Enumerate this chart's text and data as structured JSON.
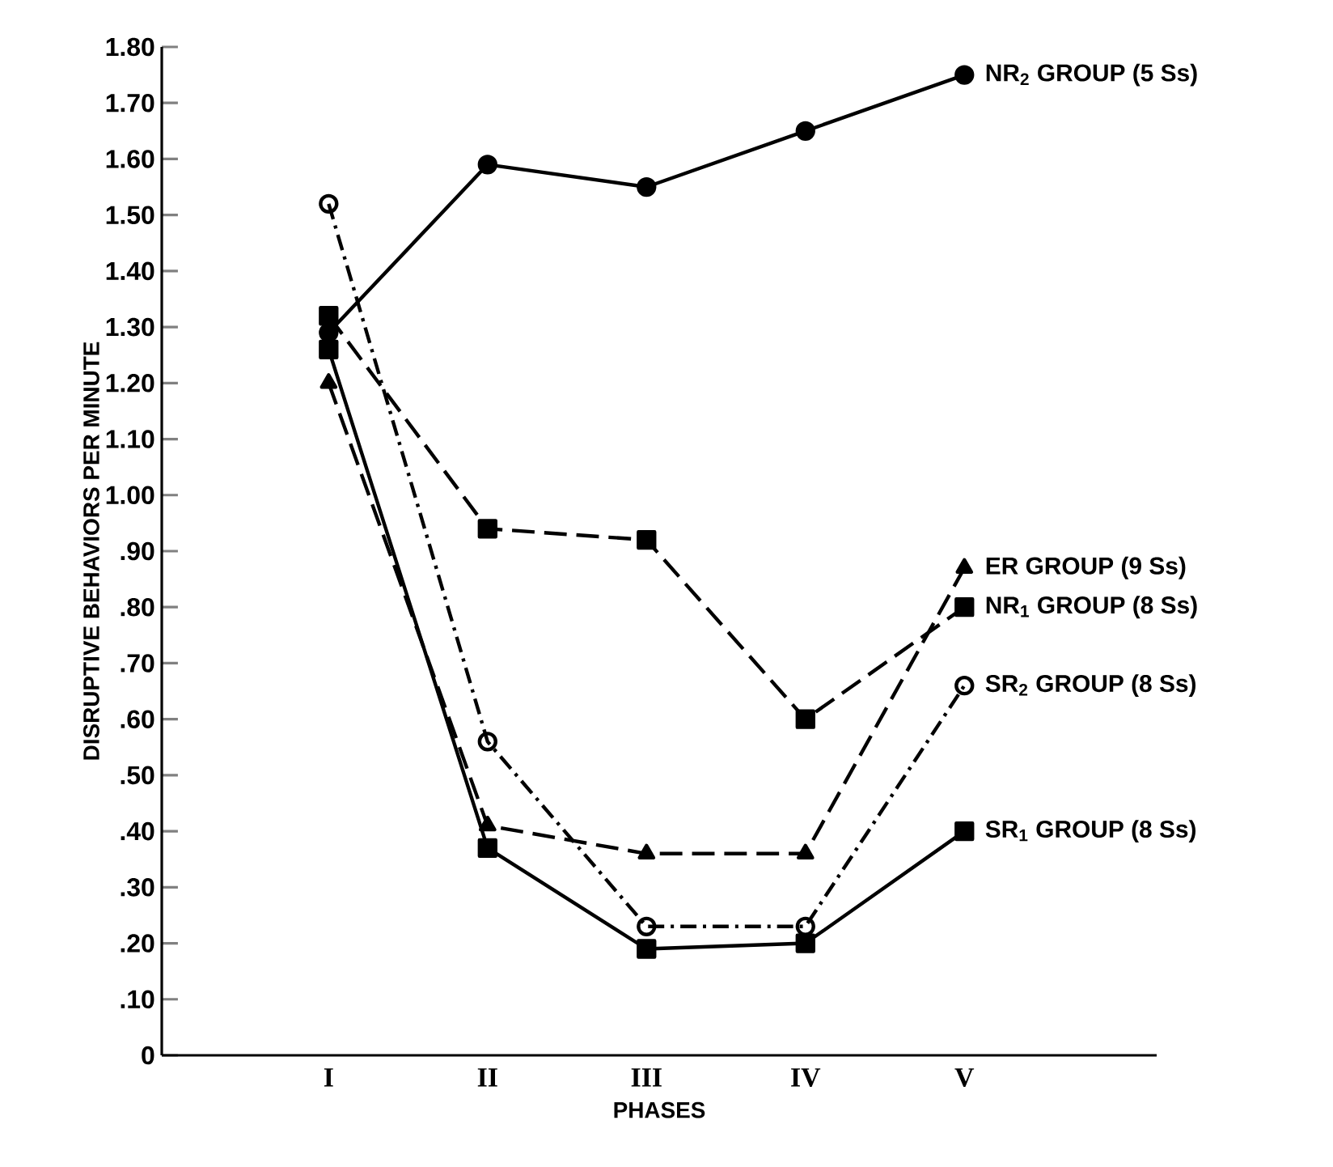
{
  "chart_data": {
    "type": "line",
    "xlabel": "PHASES",
    "ylabel": "DISRUPTIVE BEHAVIORS PER MINUTE",
    "categories": [
      "I",
      "II",
      "III",
      "IV",
      "V"
    ],
    "ylim": [
      0,
      1.8
    ],
    "yticks": [
      0,
      {
        "value": 0.1,
        "label": ".10"
      },
      {
        "value": 0.2,
        "label": ".20"
      },
      {
        "value": 0.3,
        "label": ".30"
      },
      {
        "value": 0.4,
        "label": ".40"
      },
      {
        "value": 0.5,
        "label": ".50"
      },
      {
        "value": 0.6,
        "label": ".60"
      },
      {
        "value": 0.7,
        "label": ".70"
      },
      {
        "value": 0.8,
        "label": ".80"
      },
      {
        "value": 0.9,
        "label": ".90"
      },
      {
        "value": 1.0,
        "label": "1.00"
      },
      {
        "value": 1.1,
        "label": "1.10"
      },
      {
        "value": 1.2,
        "label": "1.20"
      },
      {
        "value": 1.3,
        "label": "1.30"
      },
      {
        "value": 1.4,
        "label": "1.40"
      },
      {
        "value": 1.5,
        "label": "1.50"
      },
      {
        "value": 1.6,
        "label": "1.60"
      },
      {
        "value": 1.7,
        "label": "1.70"
      },
      {
        "value": 1.8,
        "label": "1.80"
      }
    ],
    "grid": false,
    "series": [
      {
        "name": "NR$_{2}$ GROUP (5 Ss)",
        "color": "#000000",
        "marker": "circle",
        "line_style": "solid",
        "values": [
          1.29,
          1.59,
          1.55,
          1.65,
          1.75
        ]
      },
      {
        "name": "ER GROUP (9 Ss)",
        "color": "#000000",
        "marker": "triangle",
        "line_style": "dashed",
        "values": [
          1.2,
          0.41,
          0.36,
          0.36,
          0.87
        ]
      },
      {
        "name": "NR$_{1}$ GROUP (8 Ss)",
        "color": "#000000",
        "marker": "square",
        "line_style": "dashed",
        "values": [
          1.32,
          0.94,
          0.92,
          0.6,
          0.8
        ]
      },
      {
        "name": "SR$_{2}$ GROUP (8 Ss)",
        "color": "#000000",
        "marker": "open circle",
        "line_style": "dashdot",
        "values": [
          1.52,
          0.56,
          0.23,
          0.23,
          0.66
        ]
      },
      {
        "name": "SR$_{1}$ GROUP (8 Ss)",
        "color": "#000000",
        "marker": "square",
        "line_style": "solid",
        "values": [
          1.26,
          0.37,
          0.19,
          0.2,
          0.4
        ]
      }
    ]
  }
}
